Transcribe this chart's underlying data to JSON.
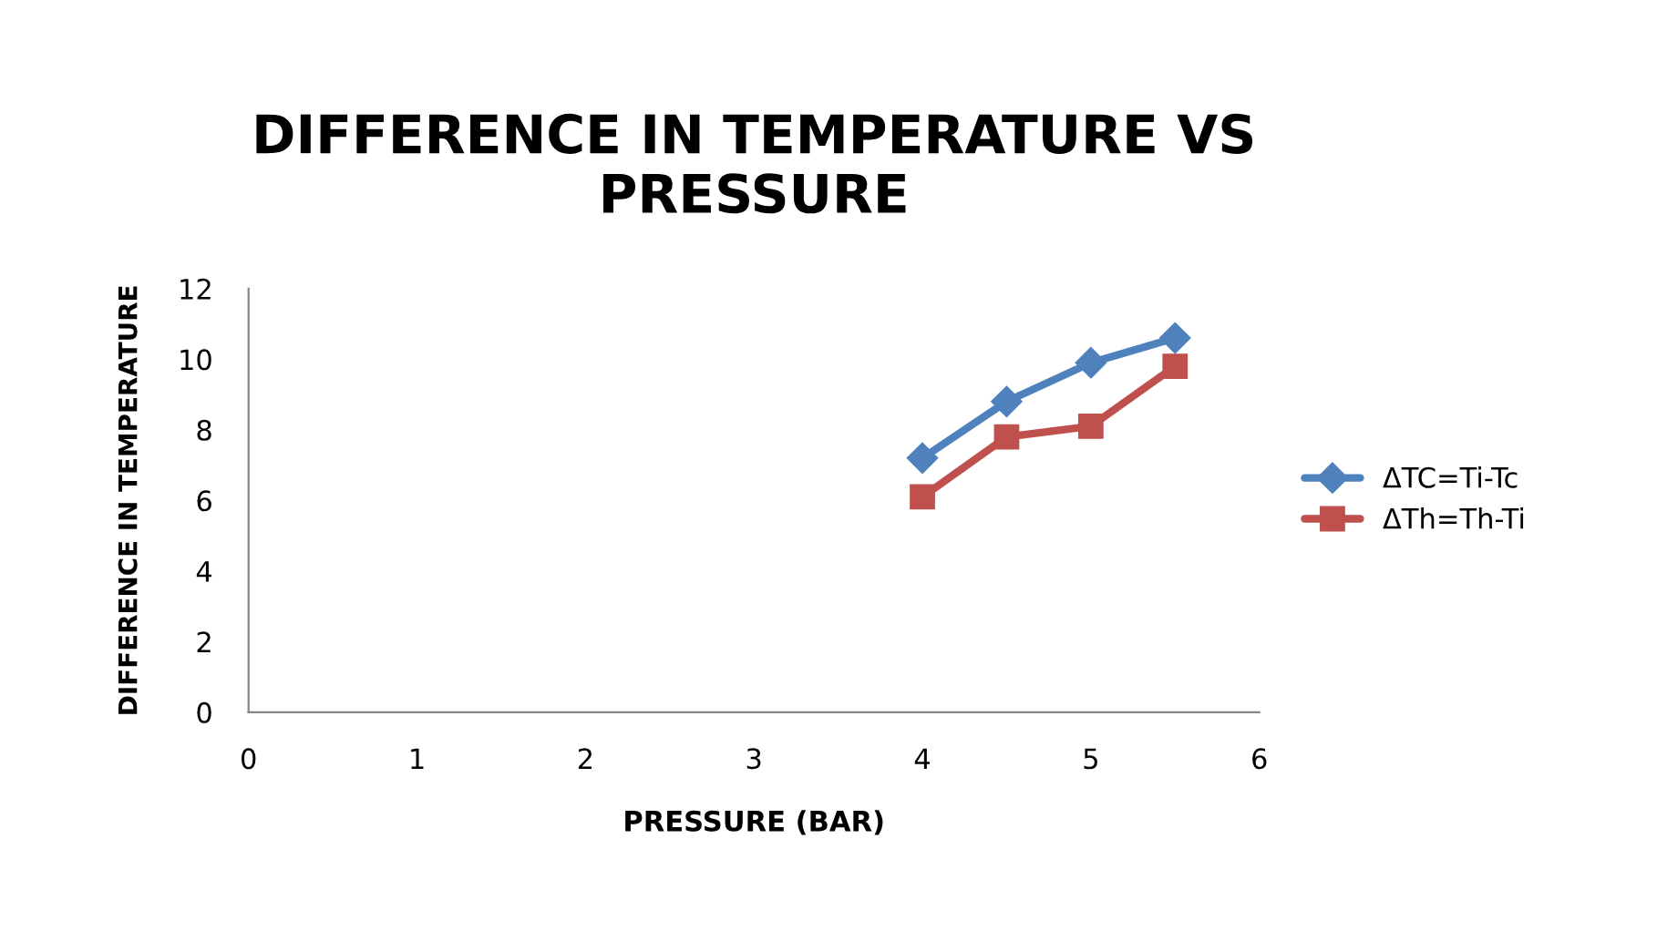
{
  "chart_data": {
    "type": "line",
    "title": "DIFFERENCE IN TEMPERATURE VS\nPRESSURE",
    "xlabel": "PRESSURE (BAR)",
    "ylabel": "DIFFERENCE IN TEMPERATURE",
    "x": [
      4,
      4.5,
      5,
      5.5
    ],
    "series": [
      {
        "name": "ΔTC=Ti-Tc",
        "color": "#4f81bd",
        "marker": "diamond",
        "values": [
          7.2,
          8.8,
          9.9,
          10.6
        ]
      },
      {
        "name": "ΔTh=Th-Ti",
        "color": "#c0504d",
        "marker": "square",
        "values": [
          6.1,
          7.8,
          8.1,
          9.8
        ]
      }
    ],
    "xlim": [
      0,
      6
    ],
    "xticks": [
      0,
      1,
      2,
      3,
      4,
      5,
      6
    ],
    "ylim": [
      0,
      12
    ],
    "yticks": [
      0,
      2,
      4,
      6,
      8,
      10,
      12
    ],
    "grid": false,
    "legend": "right"
  }
}
